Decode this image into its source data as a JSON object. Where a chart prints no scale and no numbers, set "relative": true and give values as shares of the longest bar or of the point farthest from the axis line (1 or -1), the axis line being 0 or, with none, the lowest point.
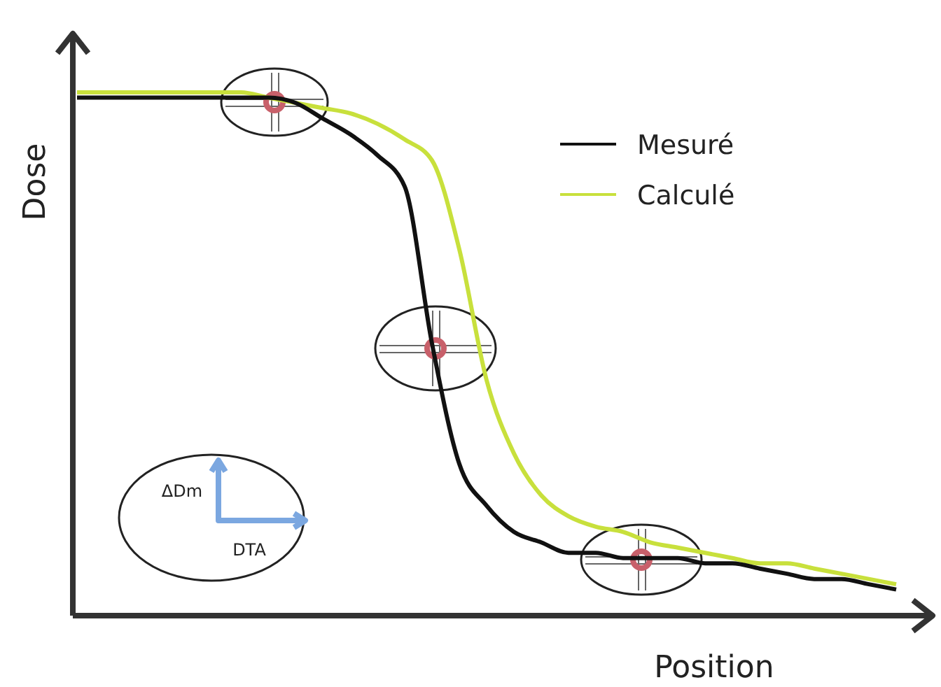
{
  "chart_data": {
    "type": "line",
    "relative": true,
    "xlabel": "Position",
    "ylabel": "Dose",
    "categories": [
      null,
      null,
      null,
      null,
      null,
      null,
      null,
      null,
      null,
      null,
      null,
      null,
      null,
      null,
      null,
      null,
      null,
      null,
      null,
      null,
      null,
      null,
      null,
      null,
      null,
      null,
      null,
      null,
      null,
      null,
      null
    ],
    "series": [
      {
        "name": "Mesuré",
        "color": "#111111",
        "values": [
          0.99,
          0.99,
          0.99,
          0.99,
          0.99,
          0.99,
          0.99,
          0.99,
          0.98,
          0.95,
          0.92,
          0.88,
          0.82,
          0.52,
          0.29,
          0.21,
          0.16,
          0.14,
          0.12,
          0.12,
          0.11,
          0.11,
          0.11,
          0.1,
          0.1,
          0.09,
          0.08,
          0.07,
          0.07,
          0.06,
          0.05
        ]
      },
      {
        "name": "Calculé",
        "color": "#c8e03c",
        "values": [
          1,
          1,
          1,
          1,
          1,
          1,
          1,
          0.99,
          0.98,
          0.97,
          0.96,
          0.94,
          0.91,
          0.87,
          0.7,
          0.45,
          0.31,
          0.23,
          0.19,
          0.17,
          0.16,
          0.14,
          0.13,
          0.12,
          0.11,
          0.1,
          0.1,
          0.09,
          0.08,
          0.07,
          0.06
        ]
      }
    ],
    "legend": "top right",
    "marker": "none",
    "line_style": "solid",
    "annotations": [
      "ΔDm",
      "DTA"
    ]
  }
}
